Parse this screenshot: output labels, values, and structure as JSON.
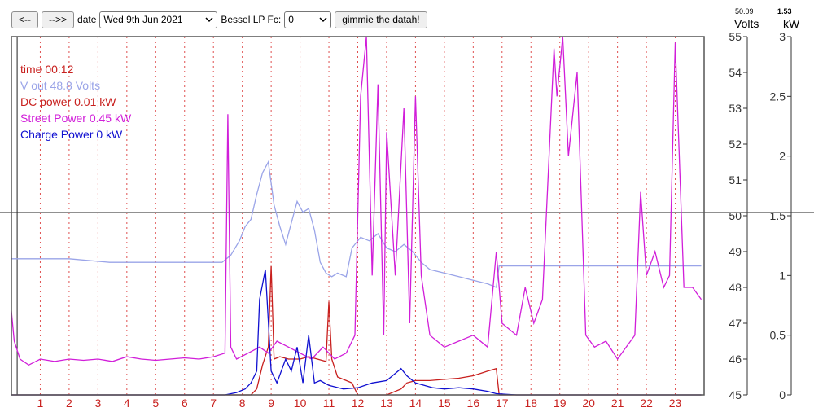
{
  "toolbar": {
    "prev_label": "<--",
    "next_label": "-->>",
    "date_label": "date",
    "date_value": "Wed 9th Jun 2021",
    "filter_label": "Bessel LP Fc:",
    "filter_value": "0",
    "submit_label": "gimmie the datah!"
  },
  "legend": {
    "time": "time 00:12",
    "vout": "V out 48.8 Volts",
    "dc": "DC power 0.01 kW",
    "street": "Street Power 0.45 kW",
    "charge": "Charge Power 0 kW"
  },
  "axes": {
    "volts_header": "50.09",
    "volts_unit": "Volts",
    "kw_header": "1.53",
    "kw_unit": "kW"
  },
  "colors": {
    "vout": "#9aa4e8",
    "dc": "#c8201e",
    "street": "#d11ed9",
    "charge": "#1010d0",
    "gridline": "#e05050"
  },
  "chart_data": {
    "type": "line",
    "x_unit": "hour",
    "xlim": [
      0,
      24
    ],
    "x_ticks": [
      "1",
      "2",
      "3",
      "4",
      "5",
      "6",
      "7",
      "8",
      "9",
      "10",
      "11",
      "12",
      "13",
      "14",
      "15",
      "16",
      "17",
      "18",
      "19",
      "20",
      "21",
      "22",
      "23"
    ],
    "volts_axis": {
      "ylim": [
        45,
        55
      ],
      "ticks": [
        "45",
        "46",
        "47",
        "48",
        "49",
        "50",
        "51",
        "52",
        "53",
        "54",
        "55"
      ]
    },
    "kw_axis": {
      "ylim": [
        0,
        3
      ],
      "ticks": [
        "0",
        "0.5",
        "1",
        "1.5",
        "2",
        "2.5",
        "3"
      ]
    },
    "crosshair": {
      "volts": 50.09,
      "kw": 1.53,
      "hour": 0.2
    },
    "series": [
      {
        "name": "V out",
        "axis": "volts",
        "x": [
          0,
          2,
          3.4,
          7.3,
          7.6,
          7.9,
          8.1,
          8.3,
          8.5,
          8.7,
          8.9,
          9.1,
          9.3,
          9.5,
          9.7,
          9.9,
          10.1,
          10.3,
          10.5,
          10.7,
          10.9,
          11.1,
          11.3,
          11.6,
          11.8,
          12.1,
          12.4,
          12.7,
          13.0,
          13.3,
          13.6,
          13.9,
          14.2,
          14.5,
          15.0,
          15.5,
          16.0,
          16.5,
          16.8,
          16.9,
          17.5,
          20,
          22,
          23.9
        ],
        "y": [
          48.8,
          48.8,
          48.7,
          48.7,
          48.9,
          49.3,
          49.7,
          49.9,
          50.6,
          51.2,
          51.5,
          50.3,
          49.7,
          49.2,
          49.8,
          50.4,
          50.1,
          50.2,
          49.6,
          48.7,
          48.4,
          48.3,
          48.4,
          48.3,
          49.1,
          49.4,
          49.3,
          49.5,
          49.1,
          49.0,
          49.2,
          49.0,
          48.7,
          48.5,
          48.4,
          48.3,
          48.2,
          48.1,
          48.0,
          48.6,
          48.6,
          48.6,
          48.6,
          48.6
        ]
      },
      {
        "name": "DC power",
        "axis": "kw",
        "x": [
          0,
          8.3,
          8.5,
          8.7,
          8.9,
          9.0,
          9.1,
          9.3,
          9.6,
          10.0,
          10.3,
          10.6,
          10.9,
          11.0,
          11.1,
          11.3,
          11.8,
          12.0,
          13.0,
          13.5,
          13.7,
          14.0,
          14.5,
          15.0,
          15.5,
          16.0,
          16.5,
          16.8,
          16.9,
          23.9
        ],
        "y": [
          0,
          0,
          0.05,
          0.25,
          0.4,
          1.08,
          0.3,
          0.32,
          0.3,
          0.3,
          0.32,
          0.3,
          0.28,
          0.78,
          0.3,
          0.15,
          0.1,
          0,
          0,
          0.05,
          0.1,
          0.12,
          0.12,
          0.13,
          0.14,
          0.16,
          0.2,
          0.22,
          0,
          0
        ]
      },
      {
        "name": "Street Power",
        "axis": "kw",
        "x": [
          0,
          0.1,
          0.3,
          0.6,
          1,
          1.5,
          2,
          2.5,
          3,
          3.5,
          4,
          4.5,
          5,
          5.5,
          6,
          6.5,
          7,
          7.4,
          7.5,
          7.6,
          7.8,
          8.2,
          8.6,
          8.9,
          9.2,
          9.6,
          10,
          10.4,
          10.8,
          11.2,
          11.6,
          11.9,
          12.1,
          12.3,
          12.5,
          12.7,
          12.9,
          13.0,
          13.3,
          13.6,
          13.8,
          14.0,
          14.2,
          14.5,
          15,
          15.5,
          16,
          16.5,
          16.8,
          17.0,
          17.5,
          17.8,
          18.1,
          18.4,
          18.8,
          18.9,
          19.1,
          19.3,
          19.6,
          19.9,
          20.2,
          20.6,
          21,
          21.3,
          21.6,
          21.8,
          22.0,
          22.3,
          22.6,
          22.8,
          23.0,
          23.3,
          23.6,
          23.9
        ],
        "y": [
          0.7,
          0.45,
          0.3,
          0.25,
          0.3,
          0.28,
          0.3,
          0.29,
          0.3,
          0.28,
          0.32,
          0.3,
          0.29,
          0.3,
          0.31,
          0.3,
          0.32,
          0.35,
          2.35,
          0.4,
          0.3,
          0.35,
          0.4,
          0.35,
          0.45,
          0.4,
          0.35,
          0.3,
          0.4,
          0.3,
          0.35,
          0.5,
          2.5,
          3.0,
          1.0,
          2.6,
          0.5,
          2.2,
          1.0,
          2.4,
          0.6,
          2.5,
          1.0,
          0.5,
          0.4,
          0.45,
          0.5,
          0.4,
          1.2,
          0.6,
          0.5,
          0.9,
          0.6,
          0.8,
          2.9,
          2.5,
          3.0,
          2.0,
          2.7,
          0.5,
          0.4,
          0.45,
          0.3,
          0.4,
          0.5,
          1.7,
          1.0,
          1.2,
          0.9,
          1.0,
          2.95,
          0.9,
          0.9,
          0.8
        ]
      },
      {
        "name": "Charge Power",
        "axis": "kw",
        "x": [
          0,
          7.4,
          7.8,
          8.1,
          8.3,
          8.5,
          8.6,
          8.8,
          9.0,
          9.2,
          9.5,
          9.7,
          9.9,
          10.1,
          10.3,
          10.5,
          10.7,
          11.0,
          11.5,
          12.0,
          12.5,
          13.0,
          13.3,
          13.5,
          13.7,
          14.0,
          14.3,
          14.6,
          15.0,
          15.5,
          16.0,
          16.5,
          16.8,
          17.5,
          23.9
        ],
        "y": [
          0,
          0,
          0.02,
          0.05,
          0.1,
          0.2,
          0.8,
          1.05,
          0.2,
          0.1,
          0.3,
          0.2,
          0.4,
          0.1,
          0.5,
          0.1,
          0.12,
          0.08,
          0.05,
          0.06,
          0.1,
          0.12,
          0.18,
          0.22,
          0.16,
          0.1,
          0.08,
          0.06,
          0.05,
          0.06,
          0.05,
          0.03,
          0.01,
          0,
          0
        ]
      }
    ]
  }
}
